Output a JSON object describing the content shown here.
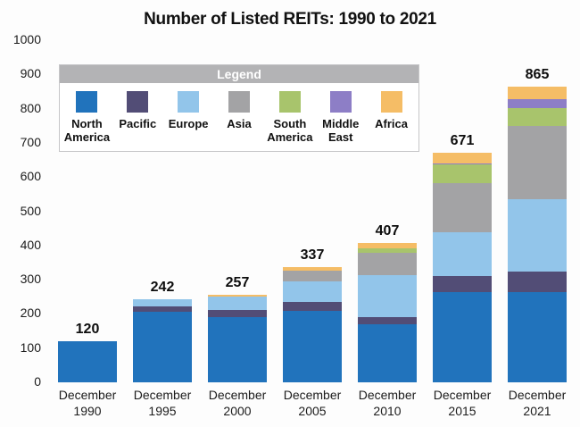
{
  "title": "Number of Listed REITs: 1990 to 2021",
  "legend": {
    "header": "Legend",
    "items": [
      {
        "label": "North America",
        "color": "#2173bc"
      },
      {
        "label": "Pacific",
        "color": "#524d76"
      },
      {
        "label": "Europe",
        "color": "#92c5ea"
      },
      {
        "label": "Asia",
        "color": "#a3a3a5"
      },
      {
        "label": "South America",
        "color": "#a8c46c"
      },
      {
        "label": "Middle East",
        "color": "#8d7ec6"
      },
      {
        "label": "Africa",
        "color": "#f5bd66"
      }
    ]
  },
  "chart_data": {
    "type": "bar",
    "stacked": true,
    "title": "Number of Listed REITs: 1990 to 2021",
    "categories": [
      "December 1990",
      "December 1995",
      "December 2000",
      "December 2005",
      "December 2010",
      "December 2015",
      "December 2021"
    ],
    "series": [
      {
        "name": "North America",
        "color": "#2173bc",
        "values": [
          120,
          205,
          190,
          210,
          170,
          265,
          265
        ]
      },
      {
        "name": "Pacific",
        "color": "#524d76",
        "values": [
          0,
          17,
          21,
          26,
          21,
          45,
          60
        ]
      },
      {
        "name": "Europe",
        "color": "#92c5ea",
        "values": [
          0,
          20,
          39,
          60,
          122,
          128,
          210
        ]
      },
      {
        "name": "Asia",
        "color": "#a3a3a5",
        "values": [
          0,
          0,
          0,
          31,
          66,
          144,
          215
        ]
      },
      {
        "name": "South America",
        "color": "#a8c46c",
        "values": [
          0,
          0,
          0,
          0,
          13,
          55,
          52
        ]
      },
      {
        "name": "Middle East",
        "color": "#8d7ec6",
        "values": [
          0,
          0,
          0,
          0,
          0,
          4,
          26
        ]
      },
      {
        "name": "Africa",
        "color": "#f5bd66",
        "values": [
          0,
          0,
          7,
          10,
          15,
          30,
          37
        ]
      }
    ],
    "totals": [
      120,
      242,
      257,
      337,
      407,
      671,
      865
    ],
    "y_ticks": [
      0,
      100,
      200,
      300,
      400,
      500,
      600,
      700,
      800,
      900,
      1000
    ],
    "ylim": [
      0,
      1000
    ],
    "grid": false,
    "legend_position": "top-left-overlay"
  }
}
